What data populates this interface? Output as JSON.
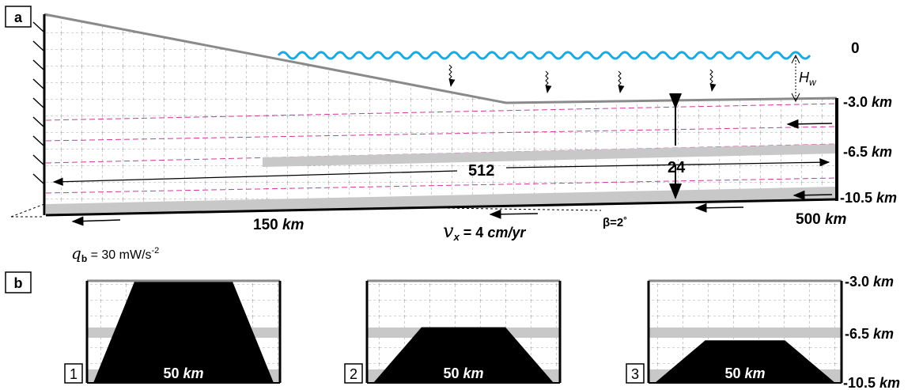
{
  "panel_a": {
    "tag": "a",
    "sea_level_label": "0",
    "water_depth_label": "H",
    "water_depth_sub": "w",
    "depth_top": "-3.0",
    "depth_mid": "-6.5",
    "depth_bot": "-10.5",
    "unit_km": "km",
    "length_left": "150",
    "length_right": "500",
    "thickness_label": "24",
    "length_label": "512",
    "velocity_symbol": "v",
    "velocity_sub": "x",
    "velocity_value": " = 4 ",
    "velocity_unit": "cm/yr",
    "dip_label": "β=2˚",
    "heat_symbol": "q",
    "heat_sub": "b",
    "heat_value": " = 30 mW/s",
    "heat_exp": "-2"
  },
  "panel_b": {
    "tag": "b",
    "depth_top": "-3.0",
    "depth_mid": "-6.5",
    "depth_bot": "-10.5",
    "unit_km": "km",
    "width_value": "50",
    "models": [
      {
        "number": "1",
        "height_fraction": 1.0
      },
      {
        "number": "2",
        "height_fraction": 0.55
      },
      {
        "number": "3",
        "height_fraction": 0.42
      }
    ]
  },
  "colors": {
    "water": "#1ea9e1",
    "layer_gray": "#c8c8c8",
    "boundary": "#8a8a8a",
    "magenta": "#d0389a",
    "block": "#000000"
  }
}
